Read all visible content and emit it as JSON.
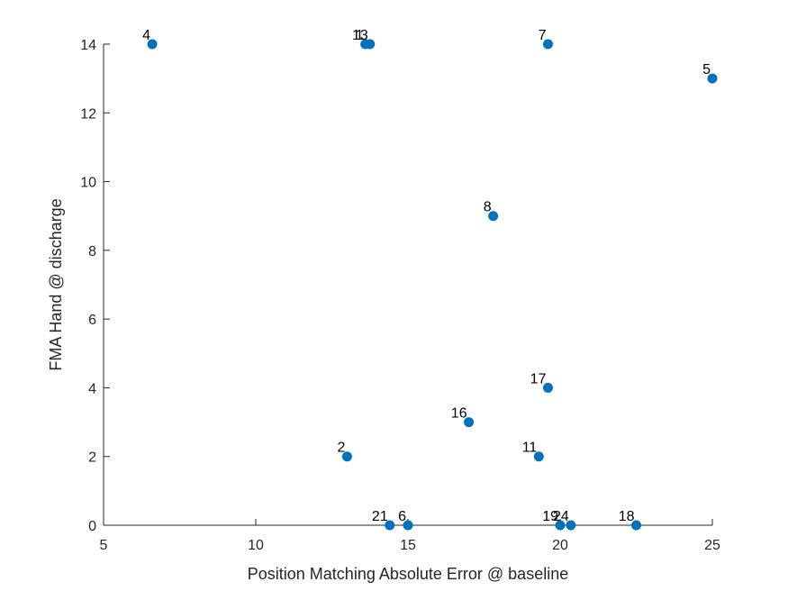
{
  "chart_data": {
    "type": "scatter",
    "title": "",
    "xlabel": "Position Matching Absolute Error @ baseline",
    "ylabel": "FMA Hand @ discharge",
    "xlim": [
      5,
      25
    ],
    "ylim": [
      0,
      14
    ],
    "xticks": [
      5,
      10,
      15,
      20,
      25
    ],
    "yticks": [
      0,
      2,
      4,
      6,
      8,
      10,
      12,
      14
    ],
    "grid": false,
    "marker_color": "#0072BD",
    "points": [
      {
        "label": "4",
        "x": 6.6,
        "y": 14
      },
      {
        "label": "1",
        "x": 13.6,
        "y": 14
      },
      {
        "label": "13",
        "x": 13.75,
        "y": 14
      },
      {
        "label": "7",
        "x": 19.6,
        "y": 14
      },
      {
        "label": "5",
        "x": 25.0,
        "y": 13
      },
      {
        "label": "8",
        "x": 17.8,
        "y": 9
      },
      {
        "label": "17",
        "x": 19.6,
        "y": 4
      },
      {
        "label": "16",
        "x": 17.0,
        "y": 3
      },
      {
        "label": "2",
        "x": 13.0,
        "y": 2
      },
      {
        "label": "11",
        "x": 19.3,
        "y": 2
      },
      {
        "label": "21",
        "x": 14.4,
        "y": 0
      },
      {
        "label": "6",
        "x": 15.0,
        "y": 0
      },
      {
        "label": "19",
        "x": 20.0,
        "y": 0
      },
      {
        "label": "24",
        "x": 20.35,
        "y": 0
      },
      {
        "label": "18",
        "x": 22.5,
        "y": 0
      }
    ]
  }
}
